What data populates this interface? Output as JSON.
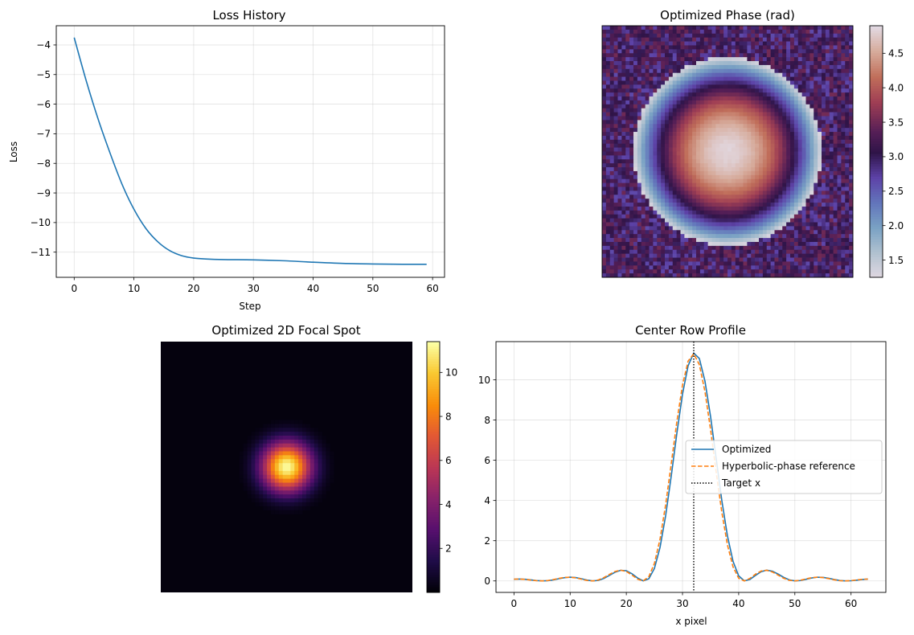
{
  "panels": {
    "loss": {
      "chart_data": {
        "type": "line",
        "title": "Loss History",
        "xlabel": "Step",
        "ylabel": "Loss",
        "xlim": [
          -3,
          62
        ],
        "ylim": [
          -11.85,
          -3.35
        ],
        "xticks": [
          0,
          10,
          20,
          30,
          40,
          50,
          60
        ],
        "xtick_labels": [
          "0",
          "10",
          "20",
          "30",
          "40",
          "50",
          "60"
        ],
        "yticks": [
          -4,
          -5,
          -6,
          -7,
          -8,
          -9,
          -10,
          -11
        ],
        "ytick_labels": [
          "−4",
          "−5",
          "−6",
          "−7",
          "−8",
          "−9",
          "−10",
          "−11"
        ],
        "grid": true,
        "series": [
          {
            "name": "loss",
            "color": "#1f77b4",
            "x": [
              0,
              2,
              4,
              6,
              8,
              10,
              12,
              14,
              16,
              18,
              20,
              22,
              25,
              30,
              35,
              40,
              45,
              50,
              55,
              59
            ],
            "y": [
              -3.75,
              -5.2,
              -6.5,
              -7.65,
              -8.7,
              -9.55,
              -10.2,
              -10.65,
              -10.95,
              -11.12,
              -11.2,
              -11.23,
              -11.25,
              -11.26,
              -11.29,
              -11.34,
              -11.38,
              -11.4,
              -11.41,
              -11.41
            ]
          }
        ]
      }
    },
    "phase": {
      "chart_data": {
        "type": "heatmap",
        "title": "Optimized Phase (rad)",
        "colormap": "twilight",
        "grid_size": 64,
        "value_range": [
          1.25,
          4.9
        ],
        "background_value": 3.1,
        "colorbar_ticks": [
          1.5,
          2.0,
          2.5,
          3.0,
          3.5,
          4.0,
          4.5
        ],
        "colorbar_labels": [
          "1.5",
          "2.0",
          "2.5",
          "3.0",
          "3.5",
          "4.0",
          "4.5"
        ],
        "aperture_radius_px": 24
      }
    },
    "focal": {
      "chart_data": {
        "type": "heatmap",
        "title": "Optimized 2D Focal Spot",
        "colormap": "inferno",
        "grid_size": 64,
        "value_range": [
          0,
          11.4
        ],
        "peak_value": 11.35,
        "colorbar_ticks": [
          2,
          4,
          6,
          8,
          10
        ],
        "colorbar_labels": [
          "2",
          "4",
          "6",
          "8",
          "10"
        ]
      }
    },
    "profile": {
      "chart_data": {
        "type": "line",
        "title": "Center Row Profile",
        "xlabel": "x pixel",
        "ylabel": "",
        "xlim": [
          -3.2,
          66.2
        ],
        "ylim": [
          -0.57,
          11.9
        ],
        "xticks": [
          0,
          10,
          20,
          30,
          40,
          50,
          60
        ],
        "xtick_labels": [
          "0",
          "10",
          "20",
          "30",
          "40",
          "50",
          "60"
        ],
        "yticks": [
          0,
          2,
          4,
          6,
          8,
          10
        ],
        "ytick_labels": [
          "0",
          "2",
          "4",
          "6",
          "8",
          "10"
        ],
        "grid": true,
        "target_x": 32,
        "legend_position": "center-right",
        "series": [
          {
            "name": "Optimized",
            "color": "#1f77b4",
            "style": "solid",
            "peak_x": 32.2,
            "peak": 11.35
          },
          {
            "name": "Hyperbolic-phase reference",
            "color": "#ff7f0e",
            "style": "dashed",
            "peak_x": 31.9,
            "peak": 11.3
          }
        ],
        "legend": [
          "Optimized",
          "Hyperbolic-phase reference",
          "Target x"
        ]
      }
    }
  }
}
